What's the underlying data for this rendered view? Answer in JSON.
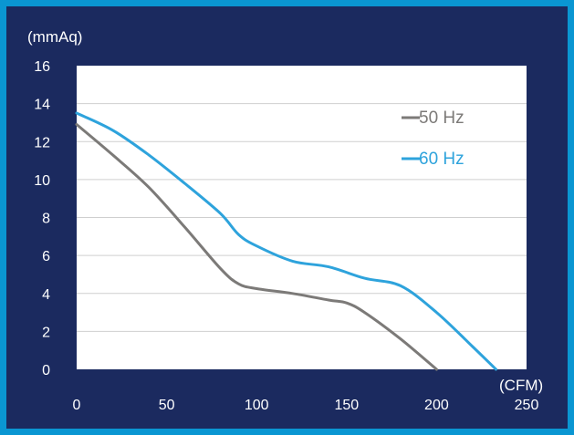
{
  "chart_data": {
    "type": "line",
    "title": "",
    "ylabel": "(mmAq)",
    "xlabel": "(CFM)",
    "xlim": [
      0,
      250
    ],
    "ylim": [
      0,
      16
    ],
    "x_ticks": [
      0,
      50,
      100,
      150,
      200,
      250
    ],
    "y_ticks": [
      0,
      2,
      4,
      6,
      8,
      10,
      12,
      14,
      16
    ],
    "grid": "horizontal",
    "legend_position": "top-right",
    "series": [
      {
        "name": "50 Hz",
        "color": "#7c7a78",
        "x": [
          0,
          20,
          40,
          60,
          80,
          90,
          100,
          120,
          140,
          150,
          160,
          180,
          200
        ],
        "y": [
          12.9,
          11.3,
          9.6,
          7.5,
          5.3,
          4.5,
          4.25,
          4.0,
          3.65,
          3.5,
          3.0,
          1.6,
          0.0
        ]
      },
      {
        "name": "60 Hz",
        "color": "#2ea3dc",
        "x": [
          0,
          20,
          40,
          60,
          80,
          90,
          100,
          120,
          140,
          160,
          180,
          200,
          220,
          233
        ],
        "y": [
          13.5,
          12.6,
          11.3,
          9.8,
          8.2,
          7.1,
          6.5,
          5.7,
          5.4,
          4.8,
          4.4,
          3.0,
          1.2,
          0.0
        ]
      }
    ]
  }
}
